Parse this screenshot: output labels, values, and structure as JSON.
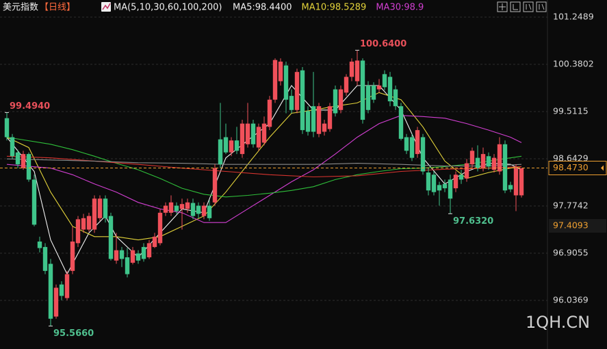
{
  "chart_data": {
    "type": "candlestick",
    "title": "美元指数",
    "subtitle": "【日线】",
    "ma_params": "MA(5,10,30,60,100,200)",
    "watermark": "1QH.CN",
    "up_color": "#f0505a",
    "down_color": "#3fc58b",
    "ylim": [
      95.143,
      101.564
    ],
    "yticks": [
      101.2489,
      100.3802,
      99.5115,
      98.6429,
      97.7742,
      96.9055,
      96.0369
    ],
    "grid": true,
    "candles": [
      [
        99.39,
        99.494,
        98.98,
        99.04
      ],
      [
        99.04,
        99.1,
        98.64,
        98.69
      ],
      [
        98.76,
        98.81,
        98.47,
        98.54
      ],
      [
        98.47,
        98.79,
        98.44,
        98.73
      ],
      [
        98.73,
        98.76,
        98.22,
        98.26
      ],
      [
        98.26,
        98.35,
        97.4,
        97.43
      ],
      [
        97.12,
        97.21,
        96.92,
        97.0
      ],
      [
        97.02,
        97.09,
        96.52,
        96.58
      ],
      [
        96.71,
        96.8,
        95.566,
        95.7
      ],
      [
        95.74,
        96.33,
        95.7,
        96.27
      ],
      [
        96.33,
        96.39,
        96.04,
        96.12
      ],
      [
        96.08,
        96.58,
        96.04,
        96.52
      ],
      [
        96.58,
        97.4,
        96.52,
        97.12
      ],
      [
        97.09,
        97.59,
        97.02,
        97.53
      ],
      [
        97.34,
        97.63,
        97.28,
        97.55
      ],
      [
        97.34,
        97.65,
        97.3,
        97.59
      ],
      [
        97.34,
        97.97,
        97.28,
        97.91
      ],
      [
        97.55,
        97.97,
        97.5,
        97.91
      ],
      [
        97.91,
        97.97,
        97.47,
        97.55
      ],
      [
        97.59,
        97.65,
        96.77,
        96.8
      ],
      [
        96.77,
        97.28,
        96.71,
        96.96
      ],
      [
        96.96,
        97.02,
        96.65,
        96.8
      ],
      [
        96.83,
        97.0,
        96.46,
        96.52
      ],
      [
        96.73,
        97.02,
        96.7,
        96.96
      ],
      [
        96.9,
        96.96,
        96.71,
        96.77
      ],
      [
        97.02,
        97.09,
        96.75,
        96.8
      ],
      [
        96.83,
        97.15,
        96.8,
        97.09
      ],
      [
        97.02,
        97.28,
        97.0,
        97.21
      ],
      [
        97.09,
        97.72,
        97.05,
        97.65
      ],
      [
        97.65,
        97.84,
        97.59,
        97.78
      ],
      [
        97.65,
        97.97,
        97.59,
        97.84
      ],
      [
        97.78,
        97.84,
        97.63,
        97.68
      ],
      [
        97.72,
        97.91,
        97.34,
        97.81
      ],
      [
        97.72,
        97.91,
        97.65,
        97.84
      ],
      [
        97.83,
        97.91,
        97.53,
        97.59
      ],
      [
        97.78,
        97.84,
        97.55,
        97.63
      ],
      [
        97.59,
        97.84,
        97.53,
        97.78
      ],
      [
        97.78,
        97.88,
        97.5,
        97.55
      ],
      [
        97.84,
        98.54,
        97.78,
        98.47
      ],
      [
        99.0,
        99.67,
        98.47,
        98.54
      ],
      [
        99.04,
        99.29,
        98.73,
        98.76
      ],
      [
        98.76,
        99.04,
        98.69,
        98.98
      ],
      [
        98.98,
        99.23,
        98.73,
        98.79
      ],
      [
        98.73,
        99.36,
        98.66,
        99.29
      ],
      [
        98.91,
        99.67,
        98.85,
        99.29
      ],
      [
        99.29,
        99.36,
        98.85,
        98.91
      ],
      [
        98.85,
        99.29,
        98.79,
        99.23
      ],
      [
        98.94,
        99.42,
        98.89,
        99.29
      ],
      [
        99.23,
        99.8,
        99.17,
        99.73
      ],
      [
        99.73,
        100.49,
        99.67,
        100.46
      ],
      [
        100.07,
        100.49,
        99.99,
        100.43
      ],
      [
        100.36,
        100.43,
        99.48,
        99.73
      ],
      [
        99.8,
        99.92,
        99.48,
        99.54
      ],
      [
        99.54,
        100.3,
        99.48,
        100.24
      ],
      [
        100.27,
        100.33,
        99.1,
        99.17
      ],
      [
        99.52,
        99.61,
        99.07,
        99.14
      ],
      [
        99.61,
        100.24,
        99.04,
        99.14
      ],
      [
        99.1,
        99.67,
        99.04,
        99.61
      ],
      [
        99.14,
        99.36,
        99.07,
        99.29
      ],
      [
        99.19,
        99.67,
        99.14,
        99.61
      ],
      [
        99.92,
        99.99,
        99.42,
        99.48
      ],
      [
        99.54,
        99.99,
        99.48,
        99.92
      ],
      [
        99.86,
        100.2,
        99.8,
        100.15
      ],
      [
        100.15,
        100.49,
        100.07,
        100.43
      ],
      [
        100.07,
        100.64,
        99.99,
        100.45
      ],
      [
        100.45,
        100.49,
        99.29,
        99.36
      ],
      [
        99.99,
        100.07,
        99.48,
        99.54
      ],
      [
        99.99,
        100.05,
        99.67,
        99.73
      ],
      [
        99.92,
        100.11,
        99.86,
        99.99
      ],
      [
        100.2,
        100.27,
        99.9,
        99.96
      ],
      [
        100.15,
        100.24,
        99.61,
        99.7
      ],
      [
        99.92,
        99.99,
        99.54,
        99.61
      ],
      [
        99.61,
        99.67,
        98.98,
        99.01
      ],
      [
        99.04,
        99.1,
        98.73,
        98.79
      ],
      [
        99.04,
        99.1,
        98.6,
        98.66
      ],
      [
        98.73,
        99.23,
        98.66,
        99.17
      ],
      [
        99.04,
        99.1,
        98.35,
        98.41
      ],
      [
        98.39,
        98.47,
        97.97,
        98.06
      ],
      [
        98.35,
        98.41,
        97.97,
        98.03
      ],
      [
        98.16,
        98.22,
        97.78,
        98.06
      ],
      [
        98.18,
        98.26,
        98.03,
        98.1
      ],
      [
        98.26,
        98.35,
        97.632,
        97.91
      ],
      [
        98.1,
        98.41,
        98.03,
        98.35
      ],
      [
        98.35,
        98.44,
        98.18,
        98.26
      ],
      [
        98.28,
        98.64,
        98.22,
        98.56
      ],
      [
        98.54,
        98.85,
        98.47,
        98.79
      ],
      [
        98.66,
        98.89,
        98.41,
        98.47
      ],
      [
        98.47,
        98.85,
        98.41,
        98.73
      ],
      [
        98.69,
        98.76,
        98.44,
        98.5
      ],
      [
        98.44,
        98.73,
        98.39,
        98.66
      ],
      [
        98.41,
        99.04,
        98.35,
        98.91
      ],
      [
        98.91,
        98.98,
        98.01,
        98.06
      ],
      [
        98.16,
        98.22,
        98.03,
        98.08
      ],
      [
        97.97,
        98.54,
        97.68,
        98.47
      ],
      [
        97.97,
        98.47,
        97.93,
        98.47
      ]
    ],
    "series": [
      {
        "name": "MA5:98.4400",
        "color": "#f2f2f2",
        "x": [
          0,
          5,
          8,
          11,
          15,
          18,
          20,
          24,
          28,
          32,
          36,
          40,
          44,
          48,
          52,
          56,
          60,
          64,
          68,
          72,
          76,
          80,
          84,
          88,
          92,
          94
        ],
        "values": [
          99.04,
          98.41,
          97.15,
          96.52,
          97.28,
          97.59,
          97.21,
          96.83,
          97.28,
          97.72,
          97.65,
          98.66,
          98.98,
          99.29,
          99.99,
          99.54,
          99.54,
          99.99,
          99.99,
          99.54,
          98.66,
          98.18,
          98.41,
          98.56,
          98.54,
          98.44
        ]
      },
      {
        "name": "MA10:98.5289",
        "color": "#e3d33a",
        "x": [
          0,
          4,
          8,
          12,
          16,
          20,
          24,
          28,
          32,
          36,
          40,
          44,
          48,
          52,
          56,
          60,
          64,
          68,
          72,
          76,
          80,
          84,
          88,
          92,
          94
        ],
        "values": [
          99.04,
          98.85,
          98.03,
          97.4,
          97.21,
          97.21,
          97.15,
          97.21,
          97.4,
          97.59,
          98.03,
          98.54,
          99.04,
          99.48,
          99.54,
          99.61,
          99.67,
          99.86,
          99.73,
          99.23,
          98.6,
          98.28,
          98.39,
          98.47,
          98.5
        ]
      },
      {
        "name": "MA30:98.9",
        "color": "#d23fd2",
        "x": [
          0,
          8,
          12,
          16,
          20,
          24,
          28,
          32,
          36,
          40,
          44,
          48,
          52,
          56,
          60,
          64,
          68,
          72,
          76,
          80,
          84,
          88,
          92,
          94
        ],
        "values": [
          98.54,
          98.47,
          98.35,
          98.18,
          98.03,
          97.84,
          97.72,
          97.65,
          97.47,
          97.47,
          97.72,
          97.97,
          98.22,
          98.44,
          98.73,
          99.04,
          99.29,
          99.44,
          99.42,
          99.39,
          99.29,
          99.17,
          99.04,
          98.94
        ]
      },
      {
        "color": "#2fbf3a",
        "x": [
          0,
          8,
          12,
          16,
          20,
          24,
          28,
          32,
          36,
          40,
          44,
          48,
          52,
          56,
          60,
          64,
          68,
          72,
          76,
          80,
          84,
          88,
          92,
          94
        ],
        "values": [
          99.04,
          98.91,
          98.81,
          98.69,
          98.56,
          98.44,
          98.28,
          98.1,
          97.99,
          97.94,
          97.97,
          98.01,
          98.06,
          98.13,
          98.26,
          98.35,
          98.41,
          98.46,
          98.47,
          98.5,
          98.54,
          98.6,
          98.66,
          98.69
        ]
      },
      {
        "color": "#d8342f",
        "x": [
          0,
          8,
          16,
          24,
          32,
          40,
          48,
          56,
          64,
          72,
          80,
          88,
          94
        ],
        "values": [
          98.69,
          98.66,
          98.6,
          98.54,
          98.47,
          98.41,
          98.35,
          98.31,
          98.33,
          98.41,
          98.45,
          98.47,
          98.5
        ]
      },
      {
        "color": "#8a8a8a",
        "x": [
          0,
          8,
          16,
          24,
          32,
          40,
          48,
          56,
          64,
          72,
          80,
          88,
          94
        ],
        "values": [
          98.64,
          98.62,
          98.6,
          98.57,
          98.56,
          98.54,
          98.54,
          98.54,
          98.56,
          98.54,
          98.51,
          98.51,
          98.54
        ]
      }
    ],
    "annotations": [
      {
        "value": 99.494,
        "label": "99.4940"
      },
      {
        "value": 95.566,
        "label": "95.5660"
      },
      {
        "value": 100.64,
        "label": "100.6400"
      },
      {
        "value": 97.632,
        "label": "97.6320"
      }
    ],
    "price_lines": [
      {
        "value": 98.473,
        "label": "98.4730",
        "color": "#f0a030"
      },
      {
        "value": 97.4093,
        "label": "97.4093",
        "color": "#f0a030"
      }
    ]
  }
}
